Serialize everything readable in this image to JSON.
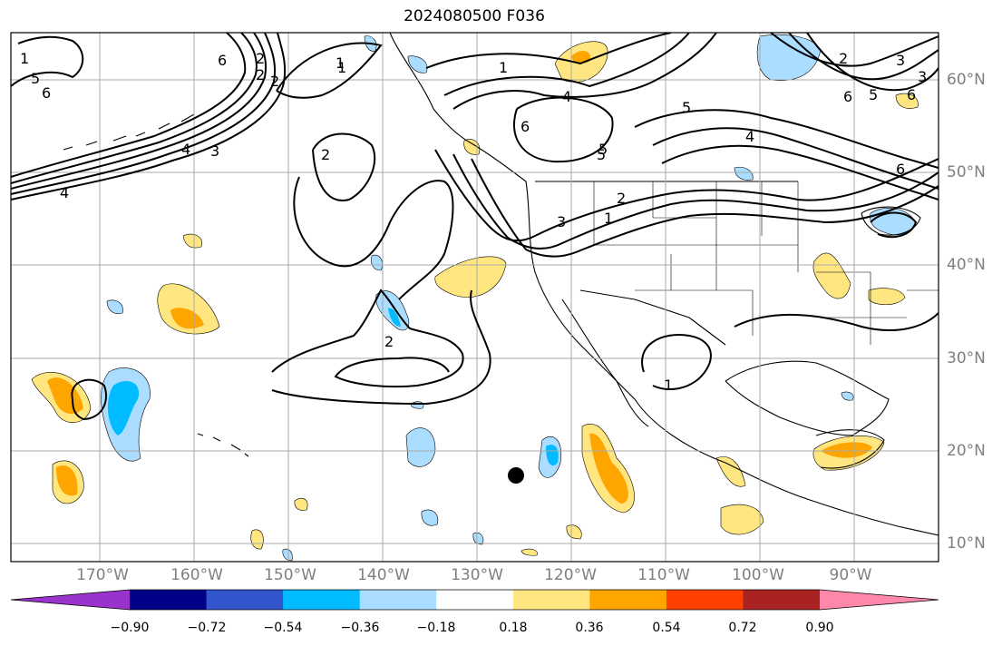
{
  "title": "2024080500 F036",
  "map": {
    "lon_ticks": [
      "170°W",
      "160°W",
      "150°W",
      "140°W",
      "130°W",
      "120°W",
      "110°W",
      "100°W",
      "90°W"
    ],
    "lat_ticks": [
      "60°N",
      "50°N",
      "40°N",
      "30°N",
      "20°N",
      "10°N"
    ],
    "contour_labels": [
      "1",
      "5",
      "6",
      "6",
      "4",
      "2",
      "2",
      "1",
      "1",
      "4",
      "6",
      "5",
      "5",
      "4",
      "6",
      "6",
      "5",
      "3",
      "2",
      "1",
      "2",
      "3",
      "4",
      "2",
      "3",
      "2",
      "1",
      "6",
      "5",
      "2",
      "3",
      "1"
    ]
  },
  "colorbar": {
    "tick_labels": [
      "−0.90",
      "−0.72",
      "−0.54",
      "−0.36",
      "−0.18",
      "0.18",
      "0.36",
      "0.54",
      "0.72",
      "0.90"
    ],
    "colors": [
      "#9933cc",
      "#000088",
      "#3355cc",
      "#00bbff",
      "#aaddff",
      "#ffffff",
      "#ffe680",
      "#ffa500",
      "#ff4000",
      "#aa2222",
      "#ff88aa"
    ]
  }
}
